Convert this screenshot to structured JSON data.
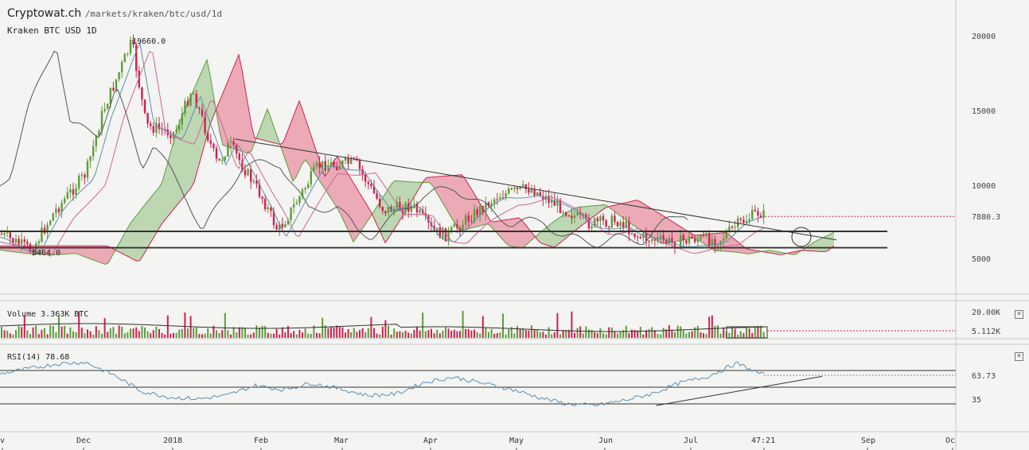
{
  "header": {
    "site": "Cryptowat.ch",
    "path": "/markets/kraken/btc/usd/1d",
    "pair": "Kraken BTC USD 1D"
  },
  "price_panel": {
    "y_ticks": [
      "20000",
      "15000",
      "10000",
      "5000"
    ],
    "current_price_label": "7880.3",
    "high_label": "19660.0",
    "low_label": "5464.0"
  },
  "volume_panel": {
    "title": "Volume 3.363K BTC",
    "y_ticks": [
      "20.00K"
    ],
    "current_label": "5.112K"
  },
  "rsi_panel": {
    "title": "RSI(14) 78.68",
    "y_ticks": [
      "35"
    ],
    "current_label": "63.73"
  },
  "x_axis": {
    "labels": [
      "v",
      "Dec",
      "2018",
      "Feb",
      "Mar",
      "Apr",
      "May",
      "Jun",
      "Jul",
      "47:21",
      "Sep",
      "Oc"
    ]
  },
  "colors": {
    "background": "#f4f4f2",
    "bull": "#5a9e3a",
    "bear": "#d0214f",
    "kumo_bull": "#8fbf7f",
    "kumo_bear": "#e56e87",
    "tenkan": "#5b8fb0",
    "kijun": "#cc6699",
    "chikou": "#555555"
  },
  "chart_data": [
    {
      "type": "candlestick",
      "title": "Kraken BTC USD 1D",
      "x": [
        "Dec",
        "2018",
        "Feb",
        "Mar",
        "Apr",
        "May",
        "Jun",
        "Jul"
      ],
      "ylim": [
        3000,
        22000
      ],
      "close_series": [
        {
          "x": "2017-11-01",
          "y": 6700
        },
        {
          "x": "2017-11-12",
          "y": 5600
        },
        {
          "x": "2017-11-20",
          "y": 8200
        },
        {
          "x": "2017-12-01",
          "y": 10800
        },
        {
          "x": "2017-12-07",
          "y": 15000
        },
        {
          "x": "2017-12-17",
          "y": 19660
        },
        {
          "x": "2017-12-22",
          "y": 14000
        },
        {
          "x": "2018-01-01",
          "y": 13500
        },
        {
          "x": "2018-01-07",
          "y": 16500
        },
        {
          "x": "2018-01-16",
          "y": 11300
        },
        {
          "x": "2018-01-20",
          "y": 12800
        },
        {
          "x": "2018-02-01",
          "y": 9000
        },
        {
          "x": "2018-02-06",
          "y": 6900
        },
        {
          "x": "2018-02-12",
          "y": 8700
        },
        {
          "x": "2018-02-20",
          "y": 11300
        },
        {
          "x": "2018-03-05",
          "y": 11500
        },
        {
          "x": "2018-03-15",
          "y": 8300
        },
        {
          "x": "2018-03-25",
          "y": 8600
        },
        {
          "x": "2018-04-01",
          "y": 6900
        },
        {
          "x": "2018-04-06",
          "y": 6600
        },
        {
          "x": "2018-04-15",
          "y": 8000
        },
        {
          "x": "2018-04-24",
          "y": 9300
        },
        {
          "x": "2018-05-05",
          "y": 9800
        },
        {
          "x": "2018-05-15",
          "y": 8600
        },
        {
          "x": "2018-05-25",
          "y": 7400
        },
        {
          "x": "2018-06-05",
          "y": 7600
        },
        {
          "x": "2018-06-12",
          "y": 6500
        },
        {
          "x": "2018-06-24",
          "y": 6100
        },
        {
          "x": "2018-07-01",
          "y": 6400
        },
        {
          "x": "2018-07-10",
          "y": 6300
        },
        {
          "x": "2018-07-17",
          "y": 7400
        },
        {
          "x": "2018-07-24",
          "y": 8200
        },
        {
          "x": "2018-07-26",
          "y": 7880.3
        }
      ],
      "annotations": [
        "19660.0",
        "5464.0",
        "7880.3"
      ],
      "horizontal_levels": [
        6900,
        6850,
        5800,
        5750
      ],
      "trendline": [
        {
          "x": "2018-01-22",
          "y": 13100
        },
        {
          "x": "2018-08-20",
          "y": 6300
        }
      ]
    },
    {
      "type": "bar",
      "title": "Volume 3.363K BTC",
      "ylim": [
        0,
        25000
      ],
      "current": 5112
    },
    {
      "type": "line",
      "title": "RSI(14) 78.68",
      "ylim": [
        20,
        85
      ],
      "levels": [
        70,
        50,
        30
      ],
      "values": [
        66,
        72,
        78,
        80,
        65,
        45,
        38,
        36,
        40,
        52,
        47,
        55,
        48,
        40,
        42,
        56,
        62,
        55,
        48,
        38,
        30,
        28,
        34,
        42,
        55,
        63,
        78.68,
        63.73
      ],
      "trendline": [
        {
          "x": "2018-06-18",
          "y": 28
        },
        {
          "x": "2018-08-15",
          "y": 63
        }
      ]
    }
  ]
}
